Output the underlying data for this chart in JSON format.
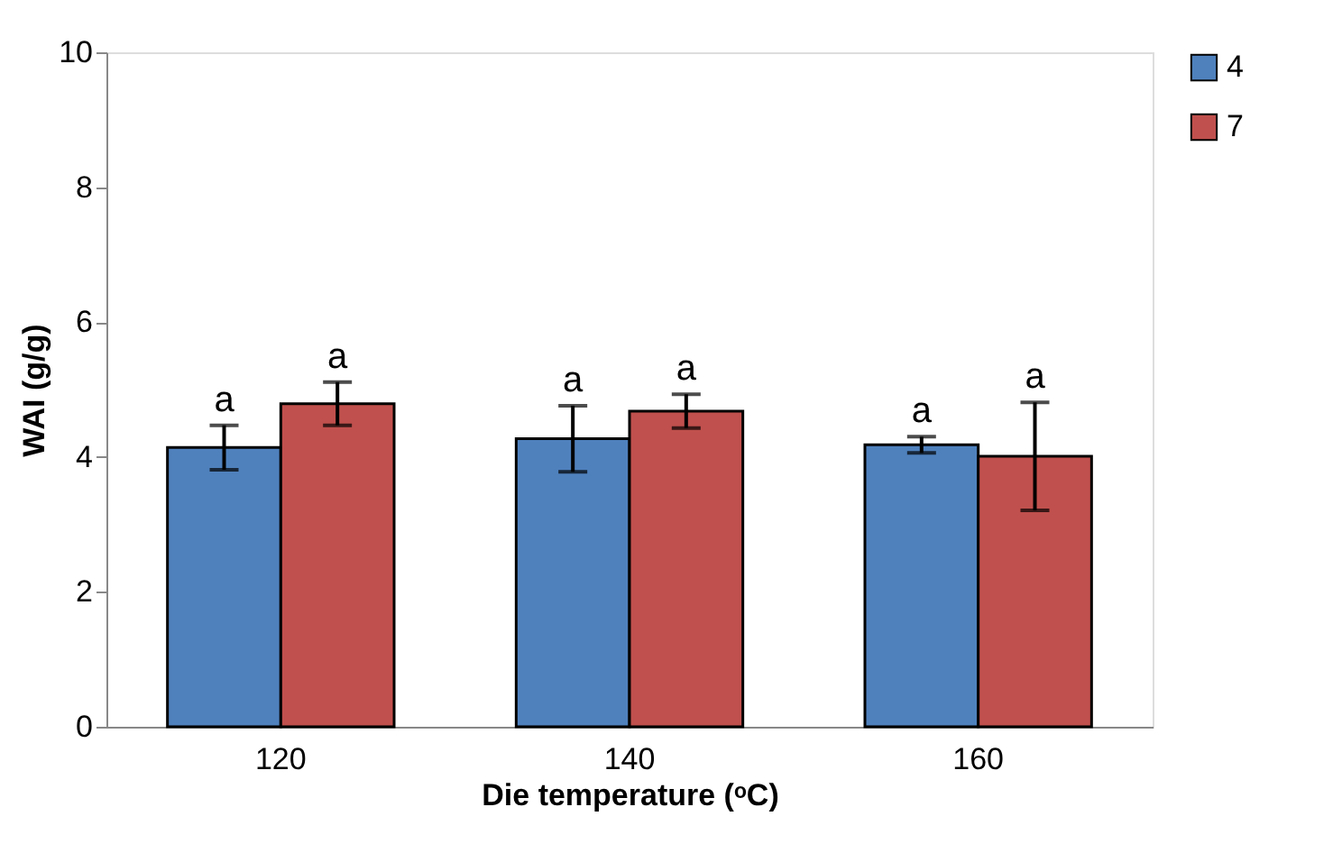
{
  "chart_data": {
    "type": "bar",
    "xlabel": "Die temperature (ᵒC)",
    "ylabel": "WAI (g/g)",
    "categories": [
      "120",
      "140",
      "160"
    ],
    "series": [
      {
        "name": "4",
        "color": "#4f81bd",
        "values": [
          4.14,
          4.27,
          4.18
        ],
        "errors": [
          0.33,
          0.49,
          0.12
        ],
        "value_labels": [
          "a",
          "a",
          "a"
        ]
      },
      {
        "name": "7",
        "color": "#c0504d",
        "values": [
          4.79,
          4.68,
          4.01
        ],
        "errors": [
          0.32,
          0.25,
          0.8
        ],
        "value_labels": [
          "a",
          "a",
          "a"
        ]
      }
    ],
    "ylim": [
      0,
      10
    ],
    "yticks": [
      0,
      2,
      4,
      6,
      8,
      10
    ],
    "grid": false,
    "legend": "right"
  }
}
